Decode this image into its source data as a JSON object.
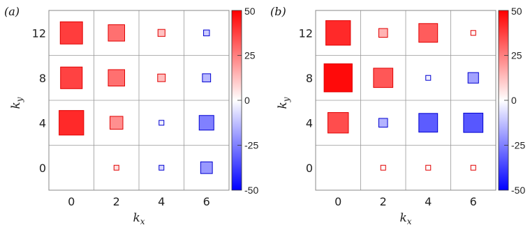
{
  "chart_data": [
    {
      "type": "heatmap",
      "panel_label": "(a)",
      "xlabel": "k",
      "xlabel_sub": "x",
      "ylabel": "k",
      "ylabel_sub": "y",
      "x_ticks": [
        "0",
        "2",
        "4",
        "6"
      ],
      "y_ticks": [
        "0",
        "4",
        "8",
        "12"
      ],
      "x": [
        0,
        2,
        4,
        6
      ],
      "y": [
        0,
        4,
        8,
        12
      ],
      "grid": true,
      "colorbar": {
        "ticks": [
          "50",
          "25",
          "0",
          "-25",
          "-50"
        ],
        "range": [
          -50,
          50
        ],
        "colors": {
          "high": "#ff0000",
          "mid": "#ffffff",
          "low": "#0000ff"
        }
      },
      "size_encodes": "abs(value)",
      "points": [
        {
          "x": 0,
          "y": 12,
          "value": 38
        },
        {
          "x": 2,
          "y": 12,
          "value": 28
        },
        {
          "x": 4,
          "y": 12,
          "value": 12
        },
        {
          "x": 6,
          "y": 12,
          "value": -10
        },
        {
          "x": 0,
          "y": 8,
          "value": 37
        },
        {
          "x": 2,
          "y": 8,
          "value": 28
        },
        {
          "x": 4,
          "y": 8,
          "value": 13
        },
        {
          "x": 6,
          "y": 8,
          "value": -14
        },
        {
          "x": 0,
          "y": 4,
          "value": 42
        },
        {
          "x": 2,
          "y": 4,
          "value": 22
        },
        {
          "x": 4,
          "y": 4,
          "value": -3
        },
        {
          "x": 6,
          "y": 4,
          "value": -25
        },
        {
          "x": 0,
          "y": 0,
          "value": 0
        },
        {
          "x": 2,
          "y": 0,
          "value": 6
        },
        {
          "x": 4,
          "y": 0,
          "value": -8
        },
        {
          "x": 6,
          "y": 0,
          "value": -20
        }
      ]
    },
    {
      "type": "heatmap",
      "panel_label": "(b)",
      "xlabel": "k",
      "xlabel_sub": "x",
      "ylabel": "k",
      "ylabel_sub": "y",
      "x_ticks": [
        "0",
        "2",
        "4",
        "6"
      ],
      "y_ticks": [
        "0",
        "4",
        "8",
        "12"
      ],
      "x": [
        0,
        2,
        4,
        6
      ],
      "y": [
        0,
        4,
        8,
        12
      ],
      "grid": true,
      "colorbar": {
        "ticks": [
          "50",
          "25",
          "0",
          "-25",
          "-50"
        ],
        "range": [
          -50,
          50
        ],
        "colors": {
          "high": "#ff0000",
          "mid": "#ffffff",
          "low": "#0000ff"
        }
      },
      "size_encodes": "abs(value)",
      "points": [
        {
          "x": 0,
          "y": 12,
          "value": 42
        },
        {
          "x": 2,
          "y": 12,
          "value": 15
        },
        {
          "x": 4,
          "y": 12,
          "value": 32
        },
        {
          "x": 6,
          "y": 12,
          "value": 2
        },
        {
          "x": 0,
          "y": 8,
          "value": 48
        },
        {
          "x": 2,
          "y": 8,
          "value": 33
        },
        {
          "x": 4,
          "y": 8,
          "value": -3
        },
        {
          "x": 6,
          "y": 8,
          "value": -18
        },
        {
          "x": 0,
          "y": 4,
          "value": 35
        },
        {
          "x": 2,
          "y": 4,
          "value": -15
        },
        {
          "x": 4,
          "y": 4,
          "value": -32
        },
        {
          "x": 6,
          "y": 4,
          "value": -33
        },
        {
          "x": 0,
          "y": 0,
          "value": 0
        },
        {
          "x": 2,
          "y": 0,
          "value": 1
        },
        {
          "x": 4,
          "y": 0,
          "value": 1
        },
        {
          "x": 6,
          "y": 0,
          "value": 1
        }
      ]
    }
  ]
}
